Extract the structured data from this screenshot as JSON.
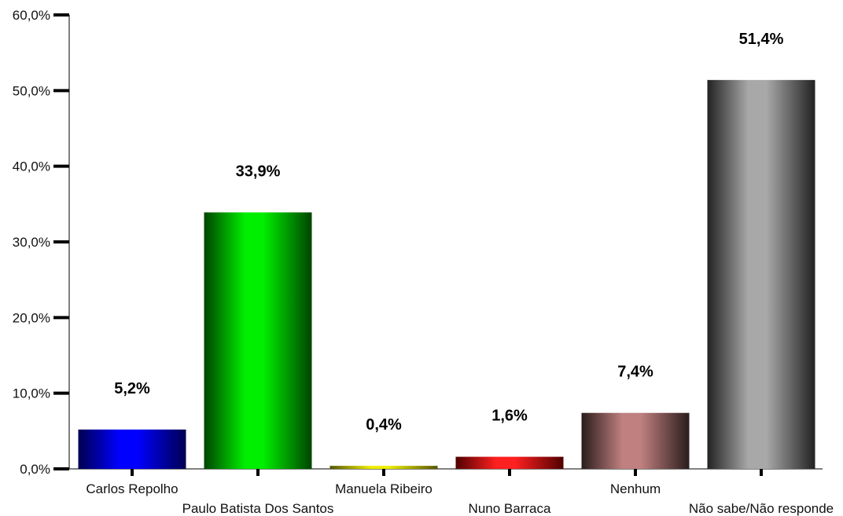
{
  "chart_data": {
    "type": "bar",
    "categories": [
      "Carlos Repolho",
      "Paulo Batista Dos Santos",
      "Manuela Ribeiro",
      "Nuno Barraca",
      "Nenhum",
      "Não sabe/Não responde"
    ],
    "values": [
      5.2,
      33.9,
      0.4,
      1.6,
      7.4,
      51.4
    ],
    "value_labels": [
      "5,2%",
      "33,9%",
      "0,4%",
      "1,6%",
      "7,4%",
      "51,4%"
    ],
    "ylim": [
      0,
      60
    ],
    "y_ticks": [
      0,
      10,
      20,
      30,
      40,
      50,
      60
    ],
    "y_tick_labels": [
      "0,0%",
      "10,0%",
      "20,0%",
      "30,0%",
      "40,0%",
      "50,0%",
      "60,0%"
    ],
    "grid": false,
    "legend": "none",
    "bar_colors": [
      "#0000ff",
      "#00ee00",
      "#eeee00",
      "#ff2020",
      "#c08080",
      "#a8a8a8"
    ],
    "bar_shadow_colors": [
      "#000050",
      "#004400",
      "#555500",
      "#500000",
      "#2a1c1c",
      "#222222"
    ]
  }
}
